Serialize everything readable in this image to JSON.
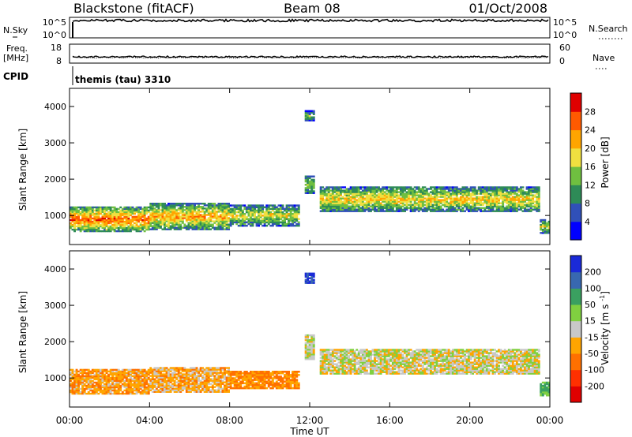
{
  "header": {
    "station": "Blackstone (fitACF)",
    "beam": "Beam 08",
    "date": "01/Oct/2008"
  },
  "strips": {
    "nsky": {
      "left_label": "N.Sky",
      "left_ticks": [
        "10^5",
        "10^0"
      ],
      "right_ticks": [
        "10^5",
        "10^0"
      ],
      "right_label": "N.Search"
    },
    "freq": {
      "left_label": "Freq.",
      "left_unit": "[MHz]",
      "left_ticks": [
        "18",
        "8"
      ],
      "right_ticks": [
        "60",
        "0"
      ],
      "right_label": "Nave"
    },
    "cpid": {
      "label": "CPID",
      "value": "themis (tau) 3310"
    }
  },
  "power_panel": {
    "ylabel": "Slant Range [km]",
    "ylim": [
      200,
      4500
    ],
    "yticks": [
      "1000",
      "2000",
      "3000",
      "4000"
    ],
    "cbar": {
      "label": "Power [dB]",
      "ticks": [
        "4",
        "8",
        "12",
        "16",
        "20",
        "24",
        "28"
      ],
      "colors": [
        "#0000ff",
        "#3050b8",
        "#2e8b57",
        "#6fbf40",
        "#f0e040",
        "#ffa500",
        "#ff5a00",
        "#e00000"
      ]
    }
  },
  "velocity_panel": {
    "ylabel": "Slant Range [km]",
    "ylim": [
      200,
      4500
    ],
    "yticks": [
      "1000",
      "2000",
      "3000",
      "4000"
    ],
    "cbar": {
      "label": "Velocity [m s^-1]",
      "ticks": [
        "200",
        "100",
        "50",
        "15",
        "-15",
        "-50",
        "-100",
        "-200"
      ],
      "colors": [
        "#1a2ad8",
        "#3868b0",
        "#3aa060",
        "#80d040",
        "#c8c8c8",
        "#ffa500",
        "#ff7000",
        "#ff3000",
        "#e00000"
      ]
    }
  },
  "x_axis": {
    "title": "Time UT",
    "ticks": [
      "00:00",
      "04:00",
      "08:00",
      "12:00",
      "16:00",
      "20:00",
      "00:00"
    ]
  },
  "chart_data": {
    "type": "heatmap",
    "title": "Blackstone (fitACF)",
    "subtitle": "Beam 08 01/Oct/2008",
    "xlabel": "Time UT",
    "ylabel": "Slant Range [km]",
    "xlim": [
      "00:00",
      "24:00"
    ],
    "ylim": [
      200,
      4500
    ],
    "panels": [
      {
        "name": "Power",
        "unit": "dB",
        "colorscale_range": [
          0,
          30
        ],
        "regions": [
          {
            "t_start": "00:00",
            "t_end": "04:00",
            "range_min": 550,
            "range_max": 1250,
            "value": 26
          },
          {
            "t_start": "04:00",
            "t_end": "08:00",
            "range_min": 600,
            "range_max": 1350,
            "value": 22
          },
          {
            "t_start": "08:00",
            "t_end": "11:30",
            "range_min": 700,
            "range_max": 1300,
            "value": 18
          },
          {
            "t_start": "11:45",
            "t_end": "12:15",
            "range_min": 1600,
            "range_max": 2100,
            "value": 16
          },
          {
            "t_start": "11:45",
            "t_end": "12:15",
            "range_min": 3600,
            "range_max": 3900,
            "value": 14
          },
          {
            "t_start": "12:30",
            "t_end": "23:30",
            "range_min": 1100,
            "range_max": 1800,
            "value": 20
          },
          {
            "t_start": "23:30",
            "t_end": "24:00",
            "range_min": 500,
            "range_max": 900,
            "value": 18
          }
        ]
      },
      {
        "name": "Velocity",
        "unit": "m s^-1",
        "colorscale_range": [
          -200,
          200
        ],
        "regions": [
          {
            "t_start": "00:00",
            "t_end": "04:00",
            "range_min": 550,
            "range_max": 1250,
            "value": -40
          },
          {
            "t_start": "04:00",
            "t_end": "08:00",
            "range_min": 600,
            "range_max": 1300,
            "value": -30
          },
          {
            "t_start": "08:00",
            "t_end": "11:30",
            "range_min": 700,
            "range_max": 1200,
            "value": -60
          },
          {
            "t_start": "11:45",
            "t_end": "12:15",
            "range_min": 1500,
            "range_max": 2200,
            "value": 0
          },
          {
            "t_start": "11:45",
            "t_end": "12:15",
            "range_min": 3600,
            "range_max": 3900,
            "value": 200
          },
          {
            "t_start": "12:30",
            "t_end": "23:30",
            "range_min": 1100,
            "range_max": 1800,
            "value": 0
          },
          {
            "t_start": "23:30",
            "t_end": "24:00",
            "range_min": 500,
            "range_max": 900,
            "value": 60
          }
        ]
      }
    ]
  }
}
